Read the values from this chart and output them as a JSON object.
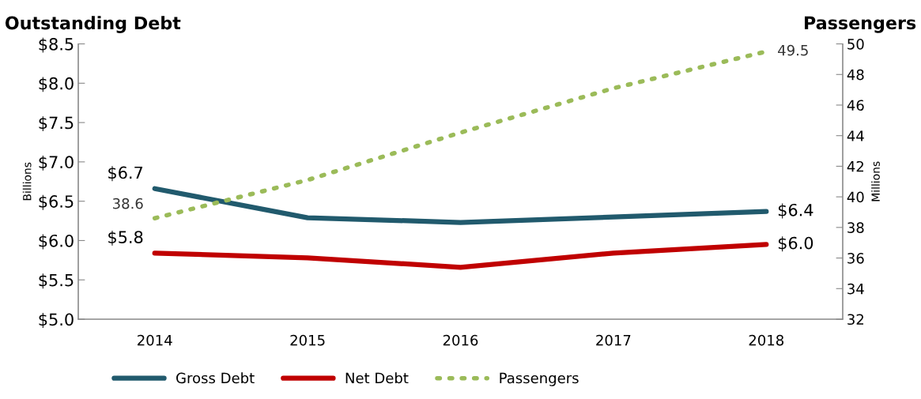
{
  "chart_data": {
    "type": "line",
    "title": "Outstanding Debt",
    "annotations": [
      "Passengers"
    ],
    "ylabel": "Billions",
    "y2label": "Millions",
    "categories": [
      "2014",
      "2015",
      "2016",
      "2017",
      "2018"
    ],
    "series": [
      {
        "name": "Gross Debt",
        "color": "#215a6d",
        "values": [
          6.66,
          6.29,
          6.23,
          6.3,
          6.37
        ],
        "value_labels": [
          "$6.7",
          null,
          null,
          null,
          "$6.4"
        ],
        "line_style": "solid"
      },
      {
        "name": "Net Debt",
        "color": "#c00000",
        "values": [
          5.84,
          5.78,
          5.66,
          5.84,
          5.95
        ],
        "value_labels": [
          "$5.8",
          null,
          null,
          null,
          "$6.0"
        ],
        "line_style": "solid"
      },
      {
        "name": "Passengers",
        "color": "#9bbb59",
        "axis": "y2",
        "values": [
          38.6,
          41.1,
          44.2,
          47.1,
          49.5
        ],
        "value_labels": [
          "38.6",
          null,
          null,
          null,
          "49.5"
        ],
        "line_style": "dotted"
      }
    ],
    "ylim": [
      5.0,
      8.5
    ],
    "yticks": [
      {
        "value": 5.0,
        "label": "$5.0"
      },
      {
        "value": 5.5,
        "label": "$5.5"
      },
      {
        "value": 6.0,
        "label": "$6.0"
      },
      {
        "value": 6.5,
        "label": "$6.5"
      },
      {
        "value": 7.0,
        "label": "$7.0"
      },
      {
        "value": 7.5,
        "label": "$7.5"
      },
      {
        "value": 8.0,
        "label": "$8.0"
      },
      {
        "value": 8.5,
        "label": "$8.5"
      }
    ],
    "y2lim": [
      32,
      50
    ],
    "y2ticks": [
      32,
      34,
      36,
      38,
      40,
      42,
      44,
      46,
      48,
      50
    ],
    "grid": false,
    "legend": "bottom",
    "marker": "none"
  }
}
